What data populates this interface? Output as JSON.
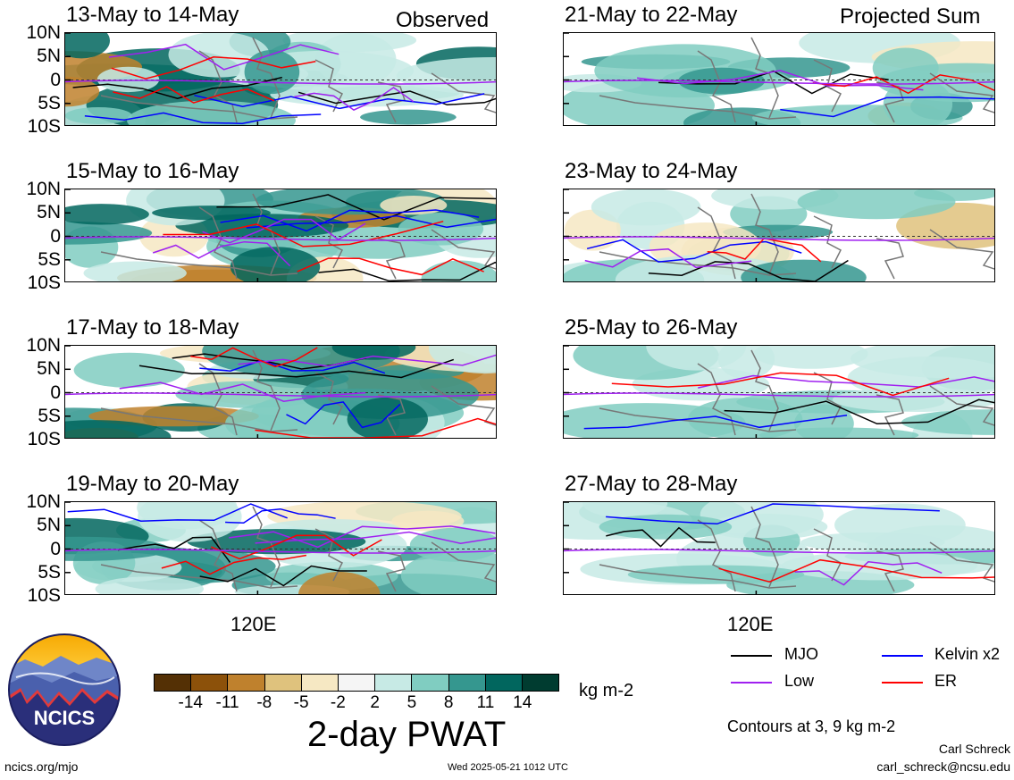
{
  "observed_label": "Observed",
  "projected_label": "Projected Sum",
  "lat_labels": [
    "10N",
    "5N",
    "0",
    "5S",
    "10S"
  ],
  "x_tick_label": "120E",
  "panels_left": [
    {
      "title": "13-May to 14-May"
    },
    {
      "title": "15-May to 16-May"
    },
    {
      "title": "17-May to 18-May"
    },
    {
      "title": "19-May to 20-May"
    }
  ],
  "panels_right": [
    {
      "title": "21-May to 22-May"
    },
    {
      "title": "23-May to 24-May"
    },
    {
      "title": "25-May to 26-May"
    },
    {
      "title": "27-May to 28-May"
    }
  ],
  "colorbar": {
    "ticks": [
      "-14",
      "-11",
      "-8",
      "-5",
      "-2",
      "2",
      "5",
      "8",
      "11",
      "14"
    ],
    "colors": [
      "#543005",
      "#8c510a",
      "#bf812d",
      "#dfc27d",
      "#f6e8c3",
      "#f5f5f5",
      "#c7eae5",
      "#80cdc1",
      "#35978f",
      "#01665e",
      "#003c30"
    ],
    "units": "kg m-2",
    "title": "2-day PWAT"
  },
  "legend": [
    {
      "label": "MJO",
      "color": "#000000"
    },
    {
      "label": "Kelvin x2",
      "color": "#0000ff"
    },
    {
      "label": "Low",
      "color": "#a020f0"
    },
    {
      "label": "ER",
      "color": "#ff0000"
    }
  ],
  "contour_note": "Contours at 3, 9 kg m-2",
  "logo_text": "NCICS",
  "footer": {
    "url": "ncics.org/mjo",
    "timestamp": "Wed 2025-05-21 1012 UTC",
    "author": "Carl Schreck",
    "email": "carl_schreck@ncsu.edu"
  }
}
